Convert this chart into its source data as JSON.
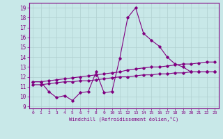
{
  "title": "",
  "xlabel": "Windchill (Refroidissement éolien,°C)",
  "ylabel": "",
  "background_color": "#c8e8e8",
  "line_color": "#800080",
  "grid_color": "#b0d0d0",
  "xlim": [
    -0.5,
    23.5
  ],
  "ylim": [
    8.8,
    19.5
  ],
  "xticks": [
    0,
    1,
    2,
    3,
    4,
    5,
    6,
    7,
    8,
    9,
    10,
    11,
    12,
    13,
    14,
    15,
    16,
    17,
    18,
    19,
    20,
    21,
    22,
    23
  ],
  "yticks": [
    9,
    10,
    11,
    12,
    13,
    14,
    15,
    16,
    17,
    18,
    19
  ],
  "line1_x": [
    0,
    1,
    2,
    3,
    4,
    5,
    6,
    7,
    8,
    9,
    10,
    11,
    12,
    13,
    14,
    15,
    16,
    17,
    18,
    19,
    20,
    21,
    22,
    23
  ],
  "line1_y": [
    11.5,
    11.5,
    10.5,
    9.9,
    10.1,
    9.6,
    10.4,
    10.5,
    12.5,
    10.4,
    10.5,
    13.9,
    18.0,
    19.0,
    16.4,
    15.7,
    15.1,
    14.0,
    13.3,
    13.0,
    12.5,
    12.5,
    12.5,
    12.5
  ],
  "line2_x": [
    0,
    1,
    2,
    3,
    4,
    5,
    6,
    7,
    8,
    9,
    10,
    11,
    12,
    13,
    14,
    15,
    16,
    17,
    18,
    19,
    20,
    21,
    22,
    23
  ],
  "line2_y": [
    11.5,
    11.5,
    11.6,
    11.7,
    11.8,
    11.9,
    12.0,
    12.1,
    12.2,
    12.3,
    12.4,
    12.5,
    12.7,
    12.8,
    12.9,
    13.0,
    13.0,
    13.1,
    13.2,
    13.3,
    13.3,
    13.4,
    13.5,
    13.5
  ],
  "line3_x": [
    0,
    1,
    2,
    3,
    4,
    5,
    6,
    7,
    8,
    9,
    10,
    11,
    12,
    13,
    14,
    15,
    16,
    17,
    18,
    19,
    20,
    21,
    22,
    23
  ],
  "line3_y": [
    11.2,
    11.2,
    11.3,
    11.4,
    11.5,
    11.5,
    11.6,
    11.6,
    11.7,
    11.8,
    11.9,
    12.0,
    12.0,
    12.1,
    12.2,
    12.2,
    12.3,
    12.3,
    12.4,
    12.4,
    12.5,
    12.5,
    12.5,
    12.5
  ]
}
